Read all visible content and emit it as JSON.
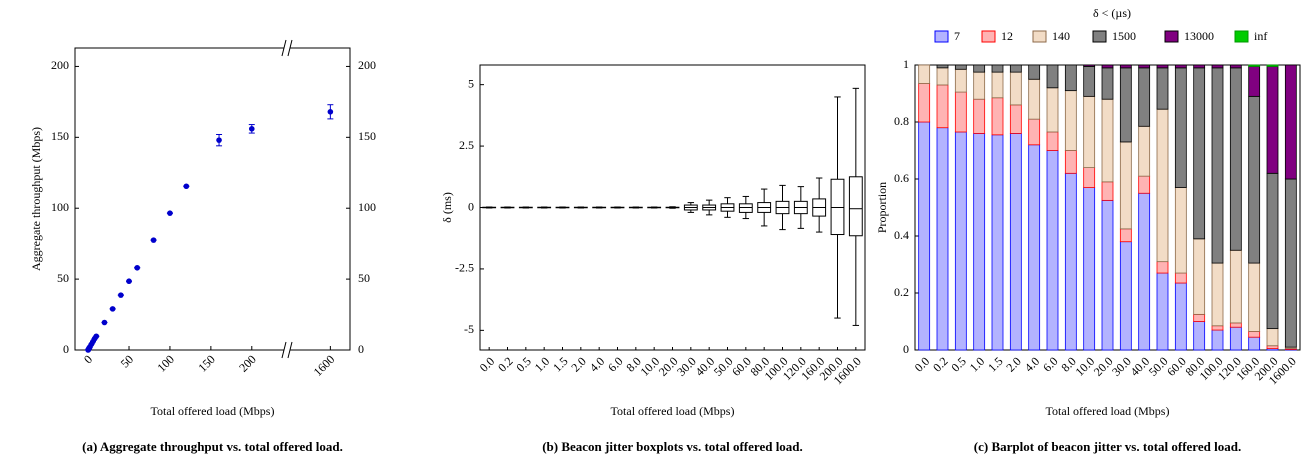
{
  "chart_data": [
    {
      "type": "scatter",
      "caption": "(a) Aggregate throughput vs. total offered load.",
      "xlabel": "Total offered load (Mbps)",
      "ylabel": "Aggregate throughput (Mbps)",
      "x": [
        0.0,
        0.2,
        0.5,
        1.0,
        1.5,
        2.0,
        4.0,
        6.0,
        8.0,
        10.0,
        20.0,
        30.0,
        40.0,
        50.0,
        60.0,
        80.0,
        100.0,
        120.0,
        160.0,
        200.0,
        1600.0
      ],
      "series": [
        {
          "color": "#0000cc",
          "values": [
            0,
            0.2,
            0.5,
            1,
            1.5,
            2,
            4,
            6,
            8,
            9.7,
            19.4,
            29,
            38.7,
            48.5,
            58,
            77.5,
            96.5,
            115.5,
            148,
            156,
            168
          ],
          "errors": [
            0,
            0,
            0,
            0,
            0,
            0,
            0,
            0,
            0,
            0,
            0,
            0,
            0,
            0,
            0,
            0,
            0,
            0,
            4,
            3,
            5
          ]
        }
      ],
      "xlim": [
        -16,
        1624
      ],
      "x_break": [
        243,
        1547
      ],
      "xticks": [
        0,
        50,
        100,
        150,
        200,
        1600
      ],
      "ylim": [
        0,
        213
      ],
      "yticks": [
        0,
        50,
        100,
        150,
        200
      ],
      "y2lim": [
        0,
        213
      ],
      "y2ticks": [
        0,
        50,
        100,
        150,
        200
      ]
    },
    {
      "type": "box",
      "caption": "(b) Beacon jitter boxplots vs. total offered load.",
      "xlabel": "Total offered load (Mbps)",
      "ylabel": "δ (ms)",
      "categories": [
        "0.0",
        "0.2",
        "0.5",
        "1.0",
        "1.5",
        "2.0",
        "4.0",
        "6.0",
        "8.0",
        "10.0",
        "20.0",
        "30.0",
        "40.0",
        "50.0",
        "60.0",
        "80.0",
        "100.0",
        "120.0",
        "160.0",
        "200.0",
        "1600.0"
      ],
      "boxes": [
        {
          "min": -0.02,
          "q1": -0.01,
          "median": 0,
          "q3": 0.01,
          "max": 0.02
        },
        {
          "min": -0.02,
          "q1": -0.01,
          "median": 0,
          "q3": 0.01,
          "max": 0.02
        },
        {
          "min": -0.02,
          "q1": -0.01,
          "median": 0,
          "q3": 0.01,
          "max": 0.02
        },
        {
          "min": -0.02,
          "q1": -0.01,
          "median": 0,
          "q3": 0.01,
          "max": 0.02
        },
        {
          "min": -0.02,
          "q1": -0.01,
          "median": 0,
          "q3": 0.01,
          "max": 0.02
        },
        {
          "min": -0.02,
          "q1": -0.01,
          "median": 0,
          "q3": 0.01,
          "max": 0.02
        },
        {
          "min": -0.02,
          "q1": -0.01,
          "median": 0,
          "q3": 0.01,
          "max": 0.02
        },
        {
          "min": -0.02,
          "q1": -0.01,
          "median": 0,
          "q3": 0.01,
          "max": 0.02
        },
        {
          "min": -0.02,
          "q1": -0.01,
          "median": 0,
          "q3": 0.01,
          "max": 0.02
        },
        {
          "min": -0.02,
          "q1": -0.01,
          "median": 0,
          "q3": 0.01,
          "max": 0.02
        },
        {
          "min": -0.03,
          "q1": -0.01,
          "median": 0,
          "q3": 0.01,
          "max": 0.03
        },
        {
          "min": -0.2,
          "q1": -0.1,
          "median": 0,
          "q3": 0.1,
          "max": 0.2
        },
        {
          "min": -0.3,
          "q1": -0.1,
          "median": 0,
          "q3": 0.1,
          "max": 0.3
        },
        {
          "min": -0.4,
          "q1": -0.15,
          "median": 0,
          "q3": 0.15,
          "max": 0.4
        },
        {
          "min": -0.45,
          "q1": -0.2,
          "median": 0,
          "q3": 0.15,
          "max": 0.45
        },
        {
          "min": -0.75,
          "q1": -0.2,
          "median": 0,
          "q3": 0.2,
          "max": 0.75
        },
        {
          "min": -0.9,
          "q1": -0.25,
          "median": 0,
          "q3": 0.25,
          "max": 0.9
        },
        {
          "min": -0.85,
          "q1": -0.25,
          "median": 0,
          "q3": 0.25,
          "max": 0.85
        },
        {
          "min": -1.0,
          "q1": -0.35,
          "median": 0,
          "q3": 0.35,
          "max": 1.2
        },
        {
          "min": -4.5,
          "q1": -1.1,
          "median": 0,
          "q3": 1.15,
          "max": 4.5
        },
        {
          "min": -4.8,
          "q1": -1.15,
          "median": -0.05,
          "q3": 1.25,
          "max": 4.85
        }
      ],
      "ylim": [
        -5.8,
        5.8
      ],
      "yticks": [
        -5,
        -2.5,
        0,
        2.5,
        5
      ]
    },
    {
      "type": "bar",
      "stacked": true,
      "caption": "(c) Barplot of beacon jitter vs. total offered load.",
      "xlabel": "Total offered load (Mbps)",
      "ylabel": "Proportion",
      "legend_title": "δ < (µs)",
      "legend": "top",
      "categories": [
        "0.0",
        "0.2",
        "0.5",
        "1.0",
        "1.5",
        "2.0",
        "4.0",
        "6.0",
        "8.0",
        "10.0",
        "20.0",
        "30.0",
        "40.0",
        "50.0",
        "60.0",
        "80.0",
        "100.0",
        "120.0",
        "160.0",
        "200.0",
        "1600.0"
      ],
      "series": [
        {
          "name": "7",
          "color": "#b3b3ff",
          "edgecolor": "#0000ff",
          "values": [
            0.8,
            0.78,
            0.765,
            0.76,
            0.755,
            0.76,
            0.72,
            0.7,
            0.62,
            0.57,
            0.525,
            0.38,
            0.55,
            0.27,
            0.235,
            0.1,
            0.07,
            0.08,
            0.045,
            0.005,
            0.002
          ]
        },
        {
          "name": "12",
          "color": "#ffb3b3",
          "edgecolor": "#ff0000",
          "values": [
            0.135,
            0.15,
            0.14,
            0.12,
            0.13,
            0.1,
            0.09,
            0.065,
            0.08,
            0.07,
            0.065,
            0.045,
            0.06,
            0.04,
            0.035,
            0.025,
            0.015,
            0.015,
            0.02,
            0.01,
            0.003
          ]
        },
        {
          "name": "140",
          "color": "#f2dcc6",
          "edgecolor": "#8c6a4a",
          "values": [
            0.065,
            0.06,
            0.08,
            0.095,
            0.09,
            0.115,
            0.14,
            0.155,
            0.21,
            0.25,
            0.29,
            0.305,
            0.175,
            0.535,
            0.3,
            0.265,
            0.22,
            0.255,
            0.24,
            0.06,
            0.005
          ]
        },
        {
          "name": "1500",
          "color": "#808080",
          "edgecolor": "#000000",
          "values": [
            0,
            0.01,
            0.015,
            0.025,
            0.025,
            0.025,
            0.05,
            0.08,
            0.09,
            0.105,
            0.11,
            0.26,
            0.205,
            0.145,
            0.42,
            0.6,
            0.685,
            0.64,
            0.585,
            0.545,
            0.59
          ]
        },
        {
          "name": "13000",
          "color": "#800080",
          "edgecolor": "#000000",
          "values": [
            0,
            0,
            0,
            0,
            0,
            0,
            0,
            0,
            0,
            0.005,
            0.01,
            0.01,
            0.01,
            0.01,
            0.01,
            0.01,
            0.01,
            0.01,
            0.105,
            0.375,
            0.4
          ]
        },
        {
          "name": "inf",
          "color": "#00cc00",
          "edgecolor": "#009900",
          "values": [
            0,
            0,
            0,
            0,
            0,
            0,
            0,
            0,
            0,
            0,
            0,
            0,
            0,
            0,
            0,
            0,
            0,
            0,
            0.005,
            0.005,
            0
          ]
        }
      ],
      "ylim": [
        0,
        1
      ],
      "yticks": [
        0,
        0.2,
        0.4,
        0.6,
        0.8,
        1
      ]
    }
  ]
}
